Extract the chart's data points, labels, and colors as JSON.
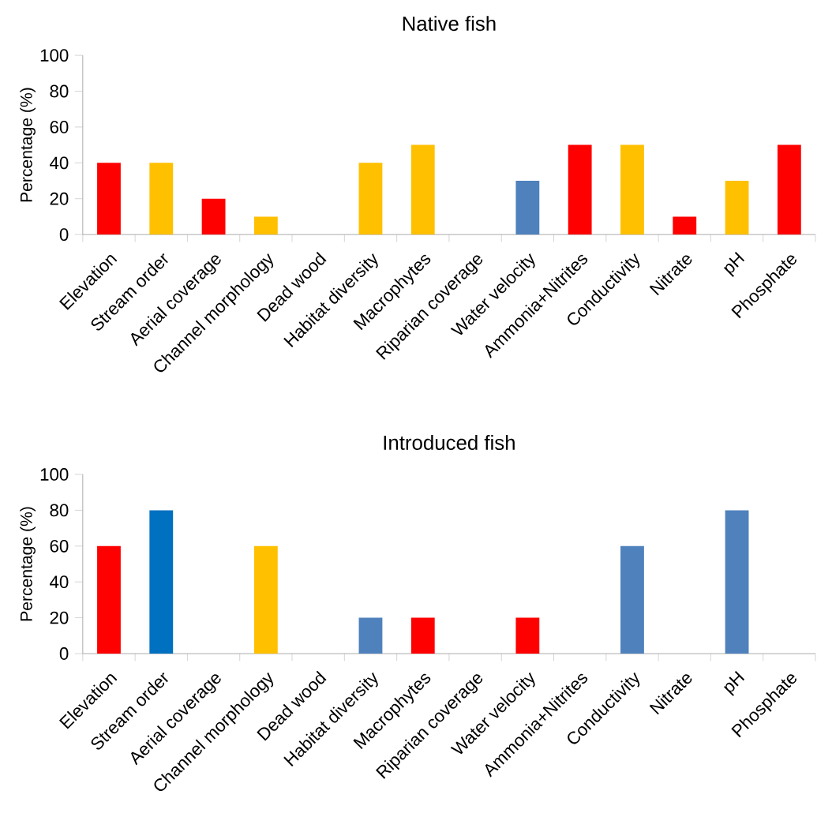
{
  "chart_data": [
    {
      "type": "bar",
      "title": "Native fish",
      "ylabel": "Percentage (%)",
      "categories": [
        "Elevation",
        "Stream order",
        "Aerial coverage",
        "Channel morphology",
        "Dead wood",
        "Habitat diversity",
        "Macrophytes",
        "Riparian coverage",
        "Water velocity",
        "Ammonia+Nitrites",
        "Conductivity",
        "Nitrate",
        "pH",
        "Phosphate"
      ],
      "values": [
        40,
        40,
        20,
        10,
        0,
        40,
        50,
        0,
        30,
        50,
        50,
        10,
        30,
        50
      ],
      "colors": [
        "#ff0000",
        "#ffc000",
        "#ff0000",
        "#ffc000",
        "#ffc000",
        "#ffc000",
        "#ffc000",
        "#ffc000",
        "#4f81bd",
        "#ff0000",
        "#ffc000",
        "#ff0000",
        "#ffc000",
        "#ff0000"
      ],
      "ylim": [
        0,
        100
      ],
      "yticks": [
        0,
        20,
        40,
        60,
        80,
        100
      ],
      "grid": false
    },
    {
      "type": "bar",
      "title": "Introduced fish",
      "ylabel": "Percentage (%)",
      "categories": [
        "Elevation",
        "Stream order",
        "Aerial coverage",
        "Channel morphology",
        "Dead wood",
        "Habitat diversity",
        "Macrophytes",
        "Riparian coverage",
        "Water velocity",
        "Ammonia+Nitrites",
        "Conductivity",
        "Nitrate",
        "pH",
        "Phosphate"
      ],
      "values": [
        60,
        80,
        0,
        60,
        0,
        20,
        20,
        0,
        20,
        0,
        60,
        0,
        80,
        0
      ],
      "colors": [
        "#ff0000",
        "#0070c0",
        "#4f81bd",
        "#ffc000",
        "#4f81bd",
        "#4f81bd",
        "#ff0000",
        "#4f81bd",
        "#ff0000",
        "#4f81bd",
        "#4f81bd",
        "#4f81bd",
        "#4f81bd",
        "#4f81bd"
      ],
      "ylim": [
        0,
        100
      ],
      "yticks": [
        0,
        20,
        40,
        60,
        80,
        100
      ],
      "grid": false
    }
  ]
}
